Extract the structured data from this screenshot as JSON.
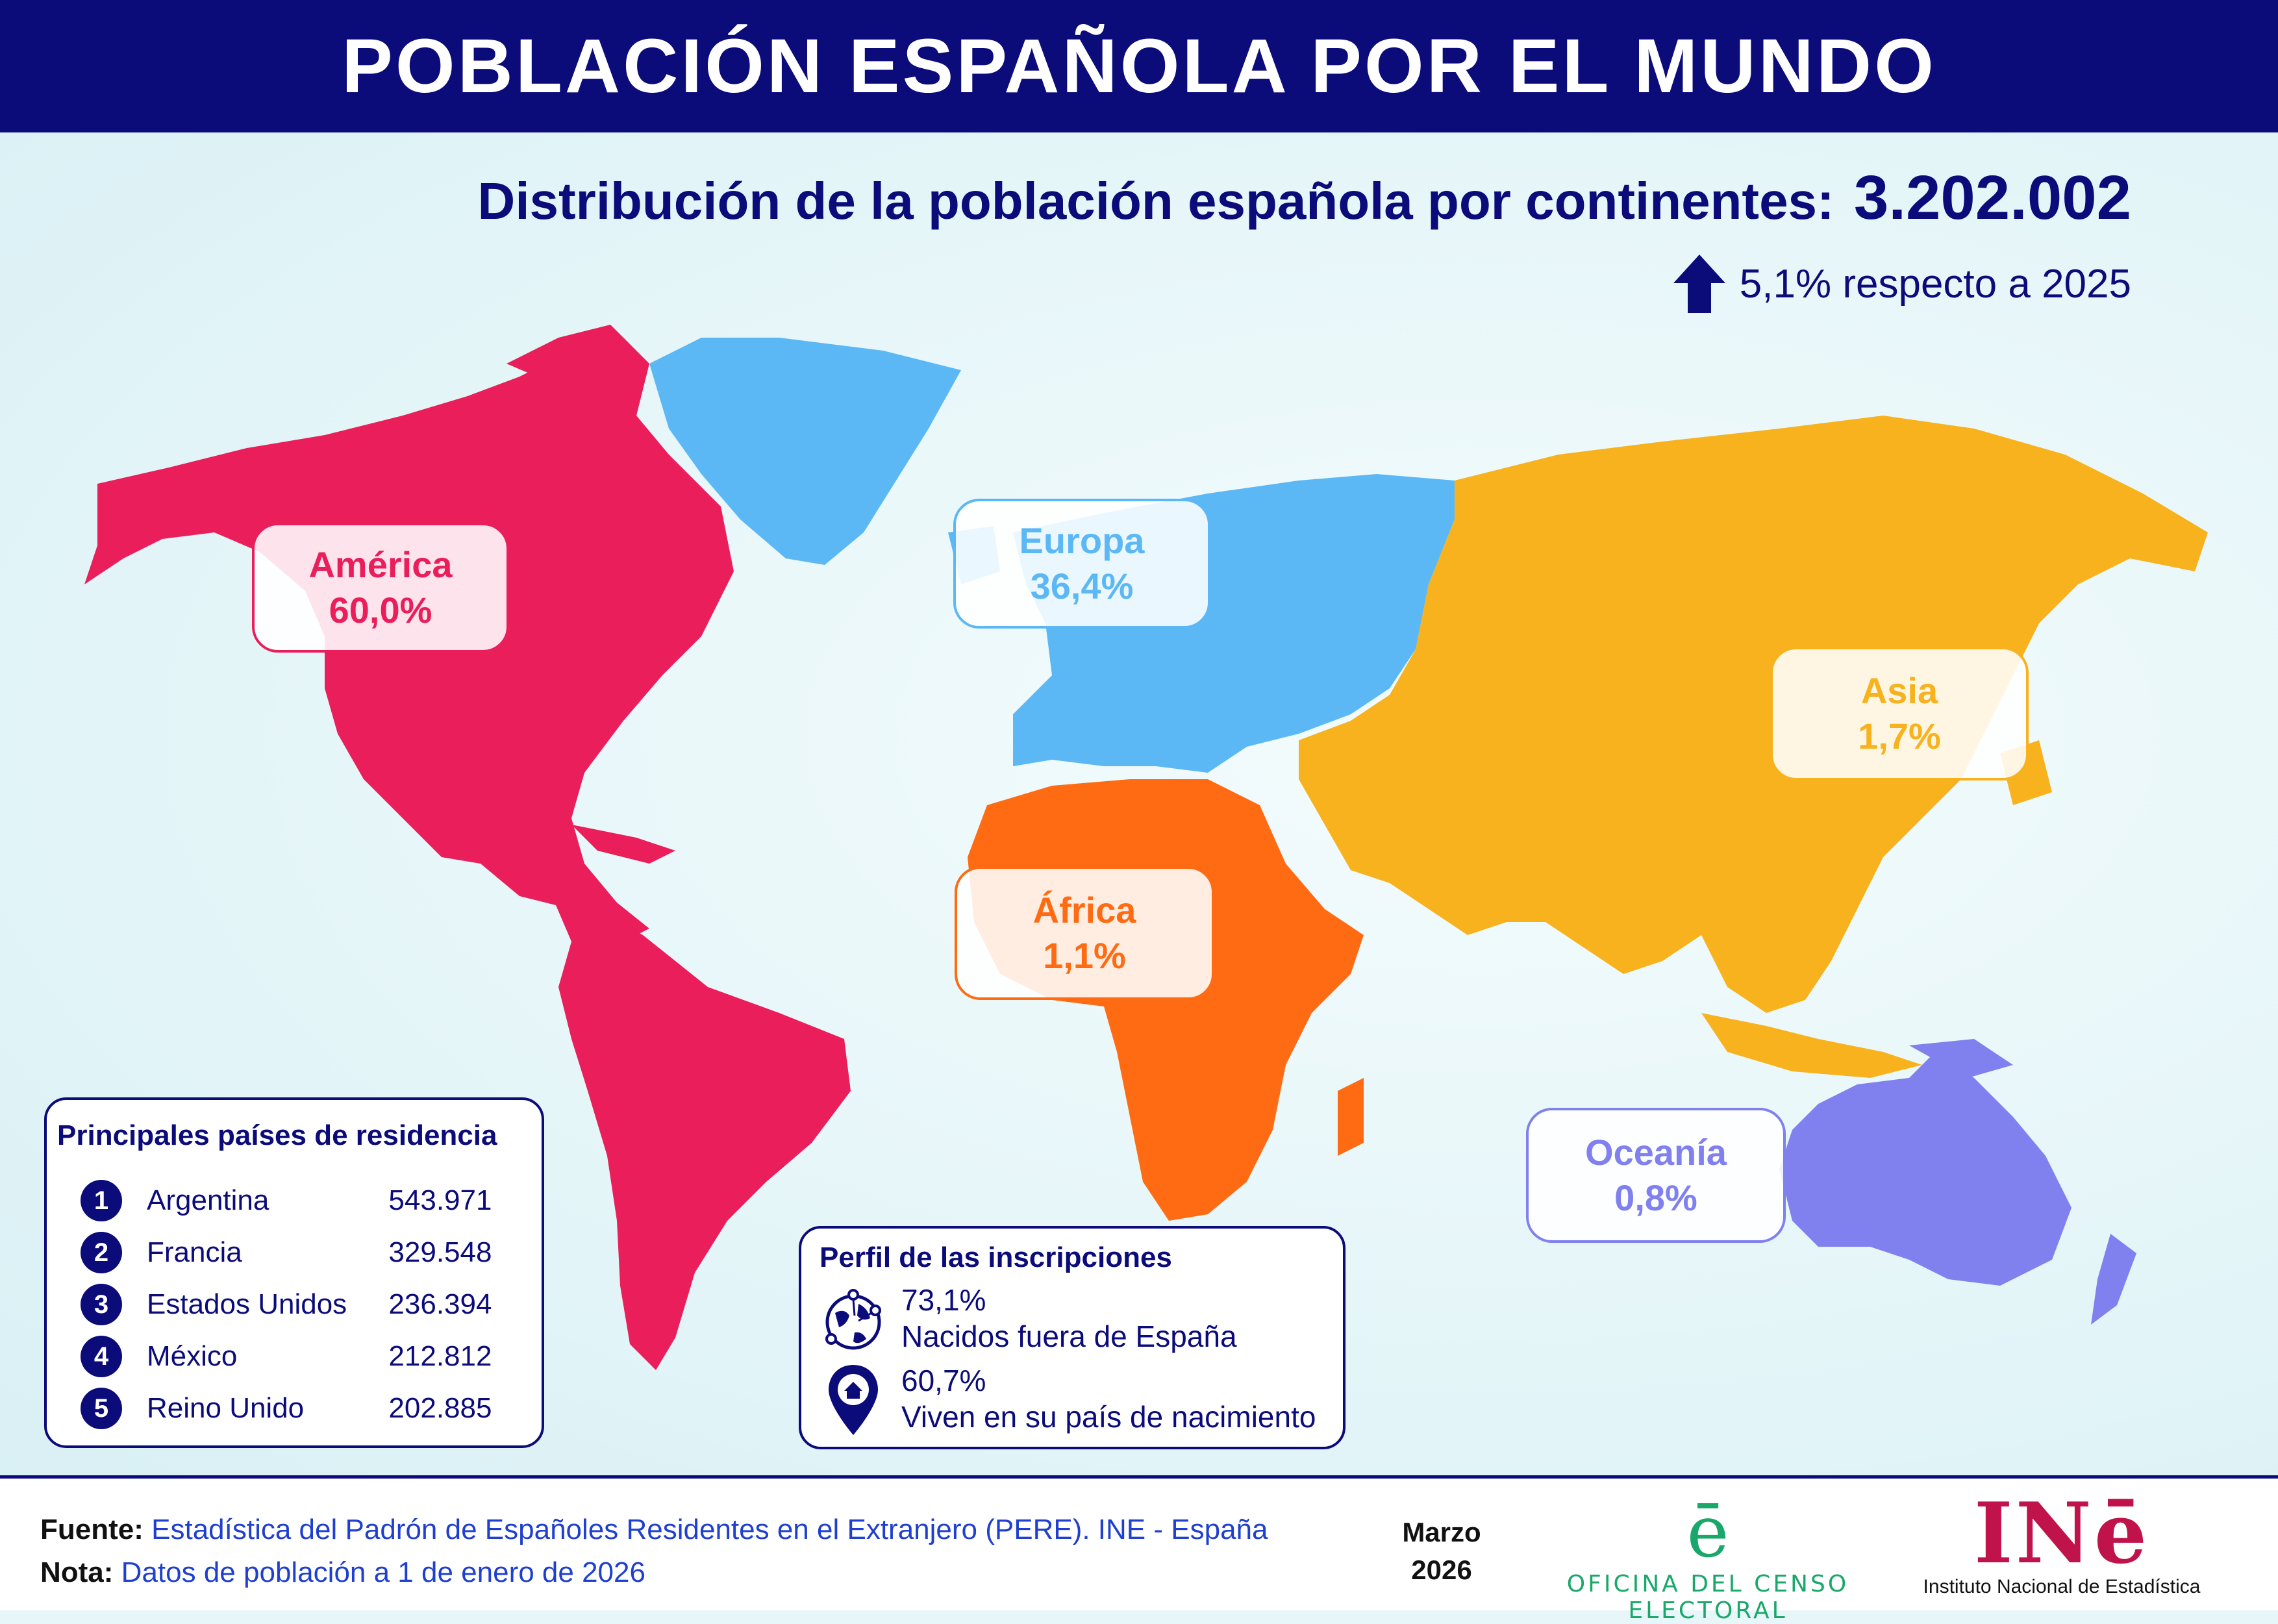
{
  "header": {
    "title": "POBLACIÓN ESPAÑOLA POR EL MUNDO"
  },
  "summary": {
    "subtitle": "Distribución de la población española por continentes:",
    "total": "3.202.002",
    "change": "5,1% respecto a 2025",
    "change_direction": "up"
  },
  "continents": [
    {
      "name": "América",
      "share": "60,0%",
      "color": "#e91e5a"
    },
    {
      "name": "Europa",
      "share": "36,4%",
      "color": "#5bb8f5"
    },
    {
      "name": "Asia",
      "share": "1,7%",
      "color": "#f7b21e"
    },
    {
      "name": "África",
      "share": "1,1%",
      "color": "#ff6b12"
    },
    {
      "name": "Oceanía",
      "share": "0,8%",
      "color": "#8080ee"
    }
  ],
  "countries": {
    "title": "Principales países de residencia",
    "items": [
      {
        "rank": "1",
        "name": "Argentina",
        "value": "543.971"
      },
      {
        "rank": "2",
        "name": "Francia",
        "value": "329.548"
      },
      {
        "rank": "3",
        "name": "Estados Unidos",
        "value": "236.394"
      },
      {
        "rank": "4",
        "name": "México",
        "value": "212.812"
      },
      {
        "rank": "5",
        "name": "Reino Unido",
        "value": "202.885"
      }
    ]
  },
  "profile": {
    "title": "Perfil de las inscripciones",
    "items": [
      {
        "icon": "globe-network-icon",
        "value": "73,1%",
        "text": "Nacidos fuera de España"
      },
      {
        "icon": "home-location-pin-icon",
        "value": "60,7%",
        "text": "Viven en su país de nacimiento"
      }
    ]
  },
  "footer": {
    "source_label": "Fuente:",
    "source_text": "Estadística del Padrón de Españoles Residentes en el Extranjero (PERE). INE - España",
    "note_label": "Nota:",
    "note_text": "Datos de población a 1 de enero de 2026",
    "month": "Marzo",
    "year": "2026",
    "oce_mark": "ē",
    "oce_name": "OFICINA DEL CENSO ELECTORAL",
    "ine_mark": "INē",
    "ine_name": "Instituto Nacional de Estadística"
  },
  "colors": {
    "navy": "#0b0b7a",
    "america": "#e91e5a",
    "europa": "#5bb8f5",
    "asia": "#f7b21e",
    "africa": "#ff6b12",
    "oceania": "#8080ee"
  }
}
